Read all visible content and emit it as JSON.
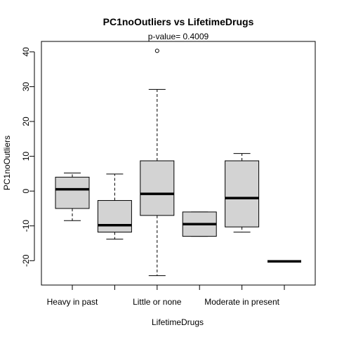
{
  "chart_data": {
    "type": "boxplot",
    "title": "PC1noOutliers  vs  LifetimeDrugs",
    "subtitle": "p-value= 0.4009",
    "xlabel": "LifetimeDrugs",
    "ylabel": "PC1noOutliers",
    "ylim": [
      -27,
      43
    ],
    "yticks": [
      -20,
      -10,
      0,
      10,
      20,
      30,
      40
    ],
    "categories": [
      "Heavy in past",
      "",
      "Little or none",
      "",
      "Moderate in present",
      ""
    ],
    "boxes": [
      {
        "whisker_low": -8.5,
        "q1": -5,
        "median": 0.5,
        "q3": 4,
        "whisker_high": 5.2,
        "outliers": []
      },
      {
        "whisker_low": -13.8,
        "q1": -11.8,
        "median": -9.8,
        "q3": -2.7,
        "whisker_high": 4.9,
        "outliers": []
      },
      {
        "whisker_low": -24.3,
        "q1": -7,
        "median": -0.8,
        "q3": 8.7,
        "whisker_high": 29.2,
        "outliers": [
          40.3
        ]
      },
      {
        "whisker_low": -13,
        "q1": -13,
        "median": -9.5,
        "q3": -6,
        "whisker_high": -6,
        "outliers": []
      },
      {
        "whisker_low": -11.8,
        "q1": -10.3,
        "median": -2,
        "q3": 8.7,
        "whisker_high": 10.8,
        "outliers": []
      },
      {
        "whisker_low": -20.2,
        "q1": -20.2,
        "median": -20.2,
        "q3": -20.2,
        "whisker_high": -20.2,
        "outliers": []
      }
    ],
    "box_color": "#d3d3d3"
  }
}
